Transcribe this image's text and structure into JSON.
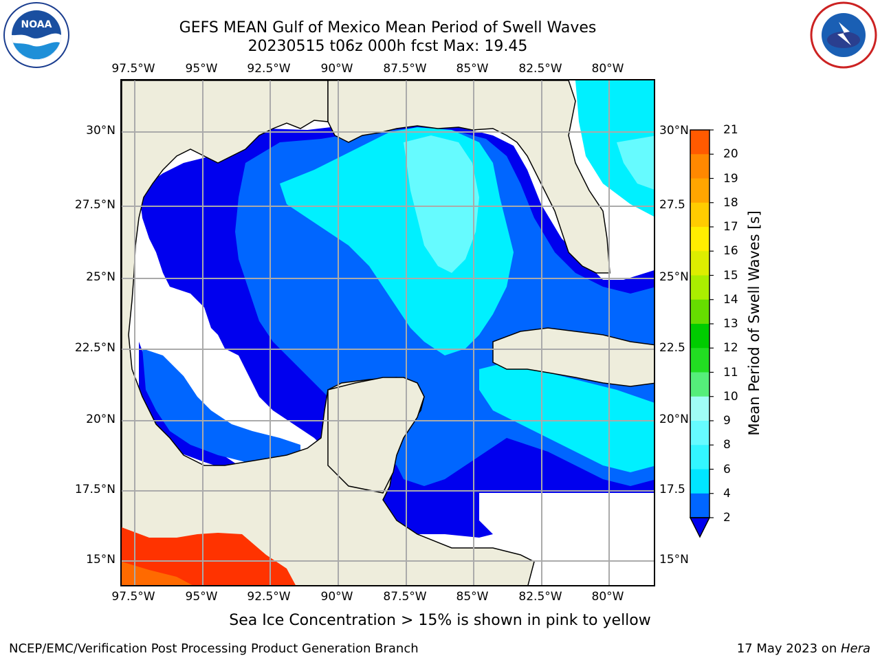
{
  "title": {
    "line1": "GEFS MEAN Gulf of Mexico Mean Period of Swell Waves",
    "line2": "20230515 t06z 000h fcst   Max: 19.45"
  },
  "map": {
    "lon_labels": [
      "97.5°W",
      "95°W",
      "92.5°W",
      "90°W",
      "87.5°W",
      "85°W",
      "82.5°W",
      "80°W"
    ],
    "lat_labels_left": [
      "30°N",
      "27.5°N",
      "25°N",
      "22.5°N",
      "20°N",
      "17.5°N",
      "15°N"
    ],
    "lat_labels_right": [
      "30°N",
      "27.5",
      "25°N",
      "22.5",
      "20°N",
      "17.5",
      "15°N"
    ],
    "land_color": "#eeeddc",
    "water_missing_color": "#ffffff",
    "grid": true
  },
  "colorbar": {
    "title": "Mean Period of Swell Waves [s]",
    "levels": [
      "2",
      "4",
      "6",
      "8",
      "9",
      "10",
      "11",
      "12",
      "13",
      "14",
      "15",
      "16",
      "17",
      "18",
      "19",
      "20",
      "21"
    ],
    "colors": [
      "#0066ff",
      "#00e5ff",
      "#33f6ff",
      "#66fbff",
      "#a0fdf6",
      "#55ee7a",
      "#22dd22",
      "#00cc00",
      "#66dd00",
      "#aaee00",
      "#ddee00",
      "#ffee00",
      "#ffcc00",
      "#ffa500",
      "#ff8800",
      "#ff5a00",
      "#ff2a00",
      "#ff0000"
    ],
    "extend_min_color": "#0000ee"
  },
  "note": "Sea Ice Concentration > 15% is shown in pink to yellow",
  "footer": {
    "left": "NCEP/EMC/Verification Post Processing Product Generation Branch",
    "right_prefix": "17 May 2023 on ",
    "right_host": "Hera"
  },
  "logos": {
    "left": "noaa-logo",
    "right": "national-weather-service-logo"
  }
}
